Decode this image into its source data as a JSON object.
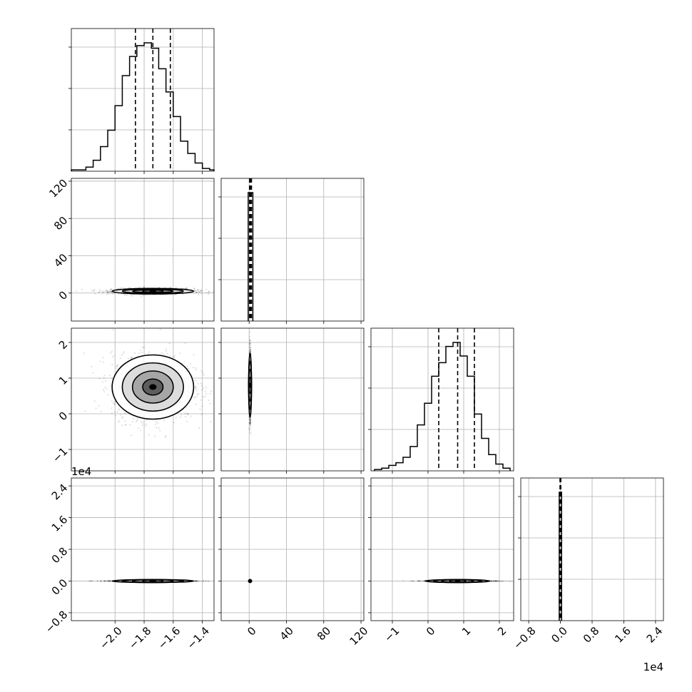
{
  "chart_data": {
    "type": "corner",
    "description_labels": [],
    "columns": [
      {
        "index": 0,
        "range": [
          -2.3,
          -1.32
        ],
        "ticks": [
          -2.0,
          -1.8,
          -1.6,
          -1.4
        ],
        "tick_labels": [
          "−2.0",
          "−1.8",
          "−1.6",
          "−1.4"
        ],
        "offset_text": ""
      },
      {
        "index": 1,
        "range": [
          -30,
          123
        ],
        "ticks": [
          0,
          40,
          80,
          120
        ],
        "tick_labels": [
          "0",
          "40",
          "80",
          "120"
        ],
        "offset_text": ""
      },
      {
        "index": 2,
        "range": [
          -1.6,
          2.4
        ],
        "ticks": [
          -1,
          0,
          1,
          2
        ],
        "tick_labels": [
          "−1",
          "0",
          "1",
          "2"
        ],
        "offset_text": "1e4"
      },
      {
        "index": 3,
        "range": [
          -1.0,
          2.6
        ],
        "ticks": [
          -0.8,
          0.0,
          0.8,
          1.6,
          2.4
        ],
        "tick_labels": [
          "−0.8",
          "0.0",
          "0.8",
          "1.6",
          "2.4"
        ],
        "offset_text": "1e4"
      }
    ],
    "histograms": [
      {
        "column": 0,
        "bin_edges": [
          -2.3,
          -2.2,
          -2.15,
          -2.1,
          -2.05,
          -2.0,
          -1.95,
          -1.9,
          -1.85,
          -1.8,
          -1.75,
          -1.7,
          -1.65,
          -1.6,
          -1.55,
          -1.5,
          -1.45,
          -1.4,
          -1.35,
          -1.32
        ],
        "counts": [
          1,
          3,
          8,
          18,
          30,
          48,
          70,
          84,
          92,
          94,
          90,
          75,
          58,
          40,
          22,
          13,
          6,
          2,
          1
        ],
        "quantiles": [
          -1.86,
          -1.74,
          -1.62
        ]
      },
      {
        "column": 1,
        "bin_edges": [
          -1,
          4
        ],
        "counts": [
          106
        ],
        "quantiles": [
          0.5,
          1.5,
          2.5
        ]
      },
      {
        "column": 2,
        "bin_edges": [
          -1.5,
          -1.3,
          -1.1,
          -0.9,
          -0.7,
          -0.5,
          -0.3,
          -0.1,
          0.1,
          0.3,
          0.5,
          0.7,
          0.9,
          1.1,
          1.3,
          1.5,
          1.7,
          1.9,
          2.1,
          2.3
        ],
        "counts": [
          1,
          2,
          4,
          6,
          10,
          18,
          34,
          50,
          70,
          80,
          92,
          95,
          85,
          70,
          42,
          24,
          12,
          5,
          2
        ],
        "quantiles": [
          0.3,
          0.83,
          1.3
        ]
      },
      {
        "column": 3,
        "bin_edges": [
          -0.03,
          0.03
        ],
        "counts": [
          100
        ],
        "quantiles": [
          -0.01,
          0.0,
          0.01
        ]
      }
    ],
    "scatter_panels": [
      {
        "row": 1,
        "col": 0,
        "center": [
          -1.74,
          2
        ],
        "spread": [
          0.14,
          1.5
        ]
      },
      {
        "row": 2,
        "col": 0,
        "center": [
          -1.74,
          0.75
        ],
        "spread": [
          0.14,
          0.45
        ]
      },
      {
        "row": 2,
        "col": 1,
        "center": [
          1,
          0.8
        ],
        "spread": [
          0.4,
          0.45
        ]
      },
      {
        "row": 3,
        "col": 0,
        "center": [
          -1.74,
          0.0
        ],
        "spread": [
          0.14,
          0.004
        ]
      },
      {
        "row": 3,
        "col": 1,
        "center": [
          1,
          0.0
        ],
        "spread": [
          0.4,
          0.003
        ]
      },
      {
        "row": 3,
        "col": 2,
        "center": [
          0.83,
          0.0
        ],
        "spread": [
          0.45,
          0.004
        ]
      }
    ]
  }
}
